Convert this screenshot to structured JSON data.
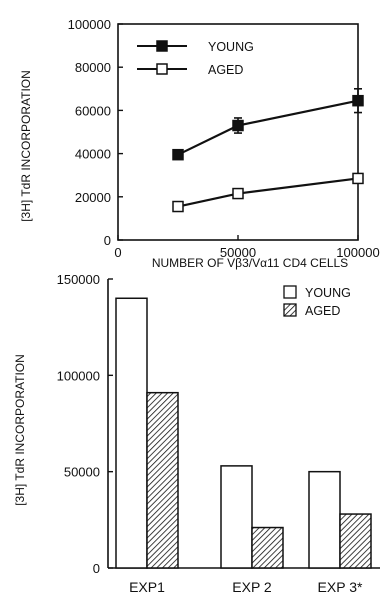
{
  "chart_data": [
    {
      "type": "line",
      "xlabel": "NUMBER OF Vβ3/Vα11 CD4 CELLS",
      "ylabel": "[3H] TdR INCORPORATION",
      "xlim": [
        0,
        100000
      ],
      "ylim": [
        0,
        100000
      ],
      "xticks": [
        "0",
        "50000",
        "100000"
      ],
      "yticks": [
        "0",
        "20000",
        "40000",
        "60000",
        "80000",
        "100000"
      ],
      "x": [
        25000,
        50000,
        100000
      ],
      "series": [
        {
          "name": "YOUNG",
          "values": [
            39500,
            53000,
            64500
          ],
          "errors": [
            0,
            3500,
            5500
          ],
          "marker": "filled-square"
        },
        {
          "name": "AGED",
          "values": [
            15500,
            21500,
            28500
          ],
          "errors": [
            0,
            2000,
            1500
          ],
          "marker": "open-square"
        }
      ],
      "legend": "top-left"
    },
    {
      "type": "bar",
      "ylabel": "[3H] TdR INCORPORATION",
      "categories": [
        "EXP1",
        "EXP 2",
        "EXP 3*"
      ],
      "ylim": [
        0,
        150000
      ],
      "yticks": [
        "0",
        "50000",
        "100000",
        "150000"
      ],
      "series": [
        {
          "name": "YOUNG",
          "values": [
            140000,
            53000,
            50000
          ],
          "fill": "white"
        },
        {
          "name": "AGED",
          "values": [
            91000,
            21000,
            28000
          ],
          "fill": "hatched"
        }
      ],
      "legend": "top-right"
    }
  ]
}
